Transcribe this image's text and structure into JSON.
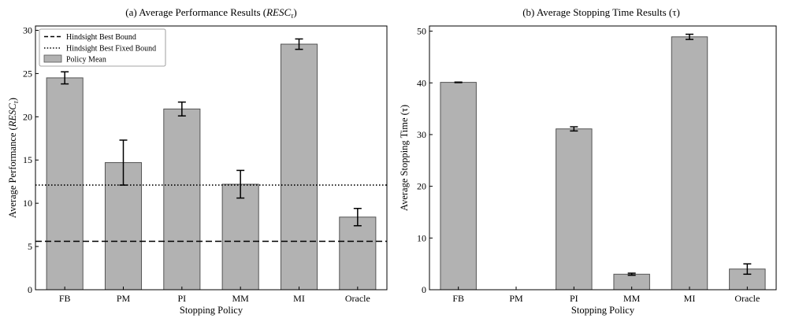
{
  "chart_data": [
    {
      "type": "bar",
      "title": "(a) Average Performance Results (RESC_τ)",
      "title_parts": {
        "prefix": "(a) Average Performance Results (",
        "main": "RESC",
        "sub": "τ",
        "suffix": ")"
      },
      "xlabel": "Stopping Policy",
      "ylabel": "Average Performance (RESC_τ)",
      "ylabel_parts": {
        "prefix": "Average Performance (",
        "main": "RESC",
        "sub": "τ",
        "suffix": ")"
      },
      "categories": [
        "FB",
        "PM",
        "PI",
        "MM",
        "MI",
        "Oracle"
      ],
      "values": [
        24.5,
        14.7,
        20.9,
        12.2,
        28.4,
        8.4
      ],
      "errors": [
        0.7,
        2.6,
        0.8,
        1.6,
        0.6,
        1.0
      ],
      "ylim": [
        0,
        30.5
      ],
      "yticks": [
        "0",
        "5",
        "10",
        "15",
        "20",
        "25",
        "30"
      ],
      "hlines": [
        {
          "name": "Hindsight Best Bound",
          "value": 5.6,
          "style": "dashed"
        },
        {
          "name": "Hindsight Best Fixed Bound",
          "value": 12.1,
          "style": "dotted"
        }
      ],
      "legend": {
        "position": "top-left",
        "entries": [
          "Hindsight Best Bound",
          "Hindsight Best Fixed Bound",
          "Policy Mean"
        ]
      },
      "bar_color": "#b2b2b2",
      "edge_color": "#555555",
      "grid": false
    },
    {
      "type": "bar",
      "title": "(b) Average Stopping Time Results (τ)",
      "xlabel": "Stopping Policy",
      "ylabel": "Average Stopping Time (τ)",
      "categories": [
        "FB",
        "PM",
        "PI",
        "MM",
        "MI",
        "Oracle"
      ],
      "values": [
        40.1,
        0,
        31.1,
        3.0,
        48.9,
        4.0
      ],
      "errors": [
        0.05,
        0,
        0.4,
        0.2,
        0.5,
        1.0
      ],
      "ylim": [
        0,
        51
      ],
      "yticks": [
        "0",
        "10",
        "20",
        "30",
        "40",
        "50"
      ],
      "bar_color": "#b2b2b2",
      "edge_color": "#555555",
      "grid": false
    }
  ]
}
